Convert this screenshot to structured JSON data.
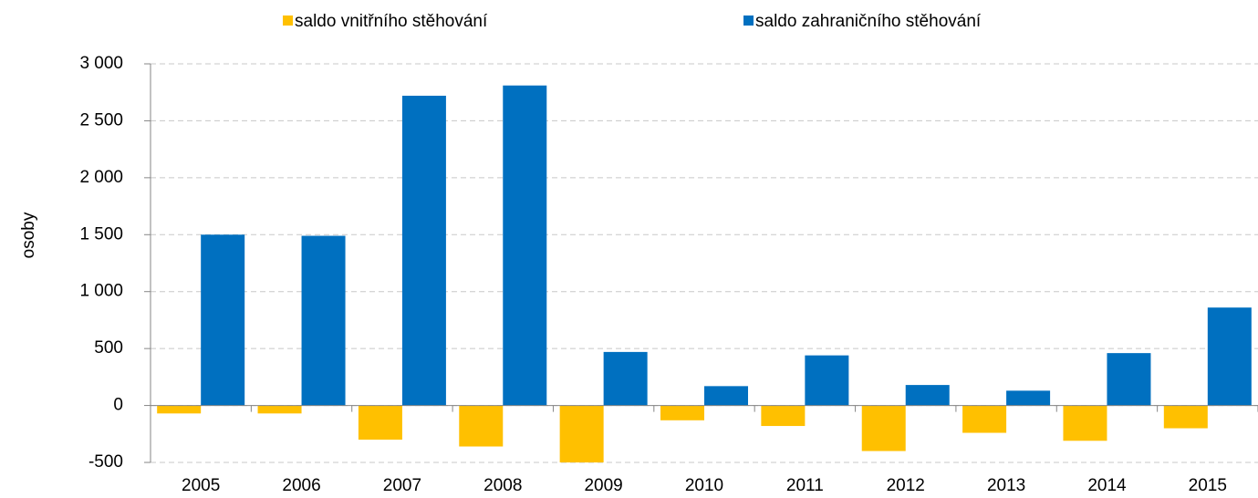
{
  "chart_data": {
    "type": "bar",
    "y_label": "osoby",
    "categories": [
      "2005",
      "2006",
      "2007",
      "2008",
      "2009",
      "2010",
      "2011",
      "2012",
      "2013",
      "2014",
      "2015"
    ],
    "series": [
      {
        "name": "saldo vnitřního stěhování",
        "color": "#ffc000",
        "values": [
          -70,
          -70,
          -300,
          -360,
          -500,
          -130,
          -180,
          -400,
          -240,
          -310,
          -200
        ]
      },
      {
        "name": "saldo zahraničního stěhování",
        "color": "#0070c0",
        "values": [
          1500,
          1490,
          2720,
          2810,
          470,
          170,
          440,
          180,
          130,
          460,
          860
        ]
      }
    ],
    "ylim": [
      -500,
      3000
    ],
    "yticks": [
      -500,
      0,
      500,
      {
        "value": 1000,
        "label": "1 000"
      },
      {
        "value": 1500,
        "label": "1 500"
      },
      {
        "value": 2000,
        "label": "2 000"
      },
      {
        "value": 2500,
        "label": "2 500"
      },
      {
        "value": 3000,
        "label": "3 000"
      }
    ],
    "grid": true,
    "legend": "top"
  }
}
